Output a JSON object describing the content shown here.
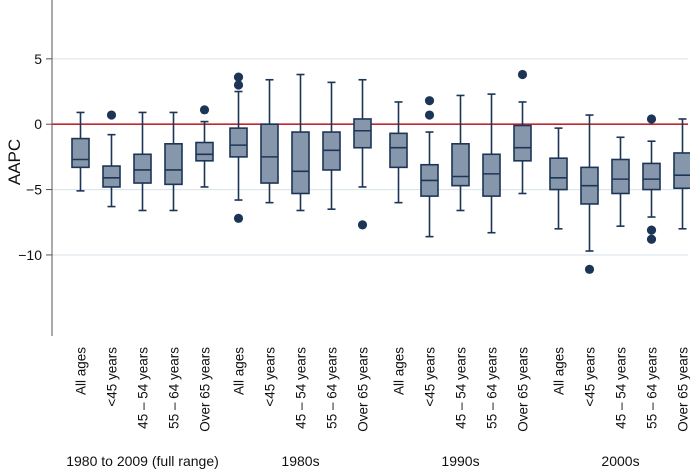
{
  "chart_data": {
    "type": "boxplot",
    "ylabel": "AAPC",
    "xlabel": "",
    "ylim": [
      -16.2,
      9.5
    ],
    "yticks": [
      5,
      0,
      -5,
      -10
    ],
    "ytick_labels": [
      "5",
      "0",
      "−5",
      "−10"
    ],
    "gridlines": [
      5,
      -5,
      -10
    ],
    "reference_line": 0,
    "colors": {
      "box_fill": "#8797ab",
      "box_stroke": "#1c3557",
      "outlier": "#1c3557",
      "reference_line": "#c0282d",
      "grid": "#d6e2ea",
      "axis": "#555555"
    },
    "groups": [
      {
        "label": "1980 to 2009 (full range)",
        "boxes": [
          {
            "category": "All ages",
            "whisker_low": -5.1,
            "q1": -3.3,
            "median": -2.7,
            "q3": -1.1,
            "whisker_high": 0.9,
            "outliers": []
          },
          {
            "category": "<45 years",
            "whisker_low": -6.3,
            "q1": -4.8,
            "median": -4.1,
            "q3": -3.2,
            "whisker_high": -0.8,
            "outliers": [
              0.7
            ]
          },
          {
            "category": "45 – 54 years",
            "whisker_low": -6.6,
            "q1": -4.5,
            "median": -3.5,
            "q3": -2.3,
            "whisker_high": 0.9,
            "outliers": []
          },
          {
            "category": "55 – 64 years",
            "whisker_low": -6.6,
            "q1": -4.6,
            "median": -3.5,
            "q3": -1.5,
            "whisker_high": 0.9,
            "outliers": []
          },
          {
            "category": "Over 65 years",
            "whisker_low": -4.8,
            "q1": -2.8,
            "median": -2.3,
            "q3": -1.4,
            "whisker_high": 0.2,
            "outliers": [
              1.1
            ]
          }
        ]
      },
      {
        "label": "1980s",
        "boxes": [
          {
            "category": "All ages",
            "whisker_low": -5.8,
            "q1": -2.5,
            "median": -1.6,
            "q3": -0.3,
            "whisker_high": 2.5,
            "outliers": [
              3.6,
              3.0,
              -7.2
            ]
          },
          {
            "category": "<45 years",
            "whisker_low": -6.0,
            "q1": -4.5,
            "median": -2.5,
            "q3": 0.0,
            "whisker_high": 3.4,
            "outliers": []
          },
          {
            "category": "45 – 54 years",
            "whisker_low": -6.6,
            "q1": -5.3,
            "median": -3.6,
            "q3": -0.6,
            "whisker_high": 3.8,
            "outliers": []
          },
          {
            "category": "55 – 64 years",
            "whisker_low": -6.5,
            "q1": -3.5,
            "median": -2.0,
            "q3": -0.6,
            "whisker_high": 3.2,
            "outliers": []
          },
          {
            "category": "Over 65 years",
            "whisker_low": -4.8,
            "q1": -1.8,
            "median": -0.5,
            "q3": 0.4,
            "whisker_high": 3.4,
            "outliers": [
              -7.7
            ]
          }
        ]
      },
      {
        "label": "1990s",
        "boxes": [
          {
            "category": "All ages",
            "whisker_low": -6.0,
            "q1": -3.3,
            "median": -1.8,
            "q3": -0.7,
            "whisker_high": 1.7,
            "outliers": []
          },
          {
            "category": "<45 years",
            "whisker_low": -8.6,
            "q1": -5.5,
            "median": -4.3,
            "q3": -3.1,
            "whisker_high": -0.6,
            "outliers": [
              1.8,
              0.7
            ]
          },
          {
            "category": "45 – 54 years",
            "whisker_low": -6.6,
            "q1": -4.7,
            "median": -4.0,
            "q3": -1.5,
            "whisker_high": 2.2,
            "outliers": []
          },
          {
            "category": "55 – 64 years",
            "whisker_low": -8.3,
            "q1": -5.5,
            "median": -3.8,
            "q3": -2.3,
            "whisker_high": 2.3,
            "outliers": []
          },
          {
            "category": "Over 65 years",
            "whisker_low": -5.3,
            "q1": -2.8,
            "median": -1.8,
            "q3": -0.1,
            "whisker_high": 1.7,
            "outliers": [
              3.8
            ]
          }
        ]
      },
      {
        "label": "2000s",
        "boxes": [
          {
            "category": "All ages",
            "whisker_low": -8.0,
            "q1": -5.0,
            "median": -4.1,
            "q3": -2.6,
            "whisker_high": -0.3,
            "outliers": []
          },
          {
            "category": "<45 years",
            "whisker_low": -9.7,
            "q1": -6.1,
            "median": -4.7,
            "q3": -3.3,
            "whisker_high": 0.7,
            "outliers": [
              -11.1
            ]
          },
          {
            "category": "45 – 54 years",
            "whisker_low": -7.8,
            "q1": -5.3,
            "median": -4.2,
            "q3": -2.7,
            "whisker_high": -1.0,
            "outliers": []
          },
          {
            "category": "55 – 64 years",
            "whisker_low": -7.1,
            "q1": -5.0,
            "median": -4.2,
            "q3": -3.0,
            "whisker_high": -1.3,
            "outliers": [
              0.4,
              -8.1,
              -8.8
            ]
          },
          {
            "category": "Over 65 years",
            "whisker_low": -8.0,
            "q1": -4.9,
            "median": -3.9,
            "q3": -2.2,
            "whisker_high": 0.4,
            "outliers": []
          }
        ]
      }
    ]
  }
}
